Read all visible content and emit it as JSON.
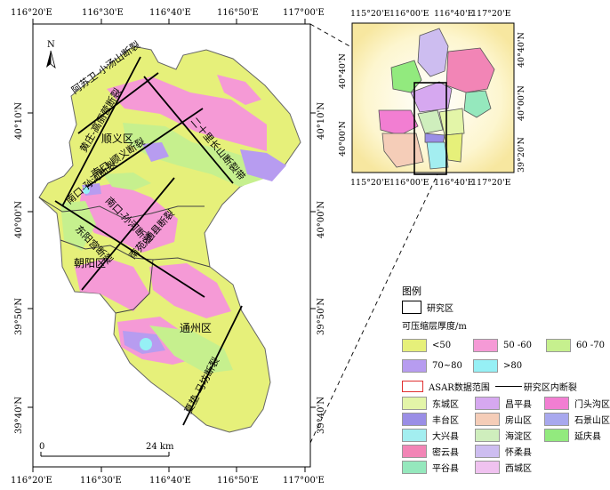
{
  "main_map": {
    "top_ticks": [
      "116°20'E",
      "116°30'E",
      "116°40'E",
      "116°50'E",
      "117°00'E"
    ],
    "bottom_ticks": [
      "116°20'E",
      "116°30'E",
      "116°40'E",
      "116°50'E",
      "117°00'E"
    ],
    "left_ticks": [
      "40°10'N",
      "40°00'N",
      "39°50'N",
      "39°40'N"
    ],
    "right_ticks": [
      "40°10'N",
      "40°00'N",
      "39°50'N",
      "39°40'N"
    ],
    "north_label": "N",
    "scale_start": "0",
    "scale_end": "24 km",
    "district_labels": {
      "shunyi": "顺义区",
      "chaoyang": "朝阳区",
      "tongzhou": "通州区"
    },
    "fault_labels": {
      "f1": "阿苏卫-小汤山断裂",
      "f2": "南口-孙河断裂",
      "f3": "南口-顺义断裂",
      "f4": "二十里长山断裂带",
      "f5": "南苑-通县断裂",
      "f6": "黄庄-高丽营断裂",
      "f7": "南口-孙河断裂",
      "f8": "东阳宫断裂",
      "f9": "南苑-通县断裂",
      "f10": "夏垫-马坊断裂"
    }
  },
  "inset_map": {
    "top_ticks": [
      "115°20'E",
      "116°00'E",
      "116°40'E",
      "117°20'E"
    ],
    "bottom_ticks": [
      "115°20'E",
      "116°00'E",
      "116°40'E",
      "117°20'E"
    ],
    "left_ticks": [
      "40°40'N",
      "40°00'N"
    ],
    "right_ticks": [
      "40°40'N",
      "40°00'N",
      "39°20'N"
    ]
  },
  "legend": {
    "title": "图例",
    "study_area": "研究区",
    "thickness_title": "可压缩层厚度/m",
    "classes": [
      {
        "label": "<50",
        "color": "#e6f07a"
      },
      {
        "label": "50 -60",
        "color": "#f59ad6"
      },
      {
        "label": "60 -70",
        "color": "#c6f08e"
      },
      {
        "label": "70~80",
        "color": "#b79cf0"
      },
      {
        "label": ">80",
        "color": "#96f0f5"
      }
    ],
    "asar_label": "ASAR数据范围",
    "fault_label": "研究区内断裂",
    "districts": [
      {
        "label": "东城区",
        "color": "#e3f5a8"
      },
      {
        "label": "昌平县",
        "color": "#d6a8f0"
      },
      {
        "label": "门头沟区",
        "color": "#f27ed2"
      },
      {
        "label": "丰台区",
        "color": "#9a8ee6"
      },
      {
        "label": "房山区",
        "color": "#f5cdb8"
      },
      {
        "label": "石景山区",
        "color": "#a8a8ee"
      },
      {
        "label": "大兴县",
        "color": "#a3eef0"
      },
      {
        "label": "海淀区",
        "color": "#cfeebd"
      },
      {
        "label": "延庆县",
        "color": "#92ea7e"
      },
      {
        "label": "密云县",
        "color": "#f285b6"
      },
      {
        "label": "怀柔县",
        "color": "#cdbdf0"
      },
      {
        "label": "平谷县",
        "color": "#95e8bd"
      },
      {
        "label": "西城区",
        "color": "#f0c2f0"
      }
    ]
  }
}
